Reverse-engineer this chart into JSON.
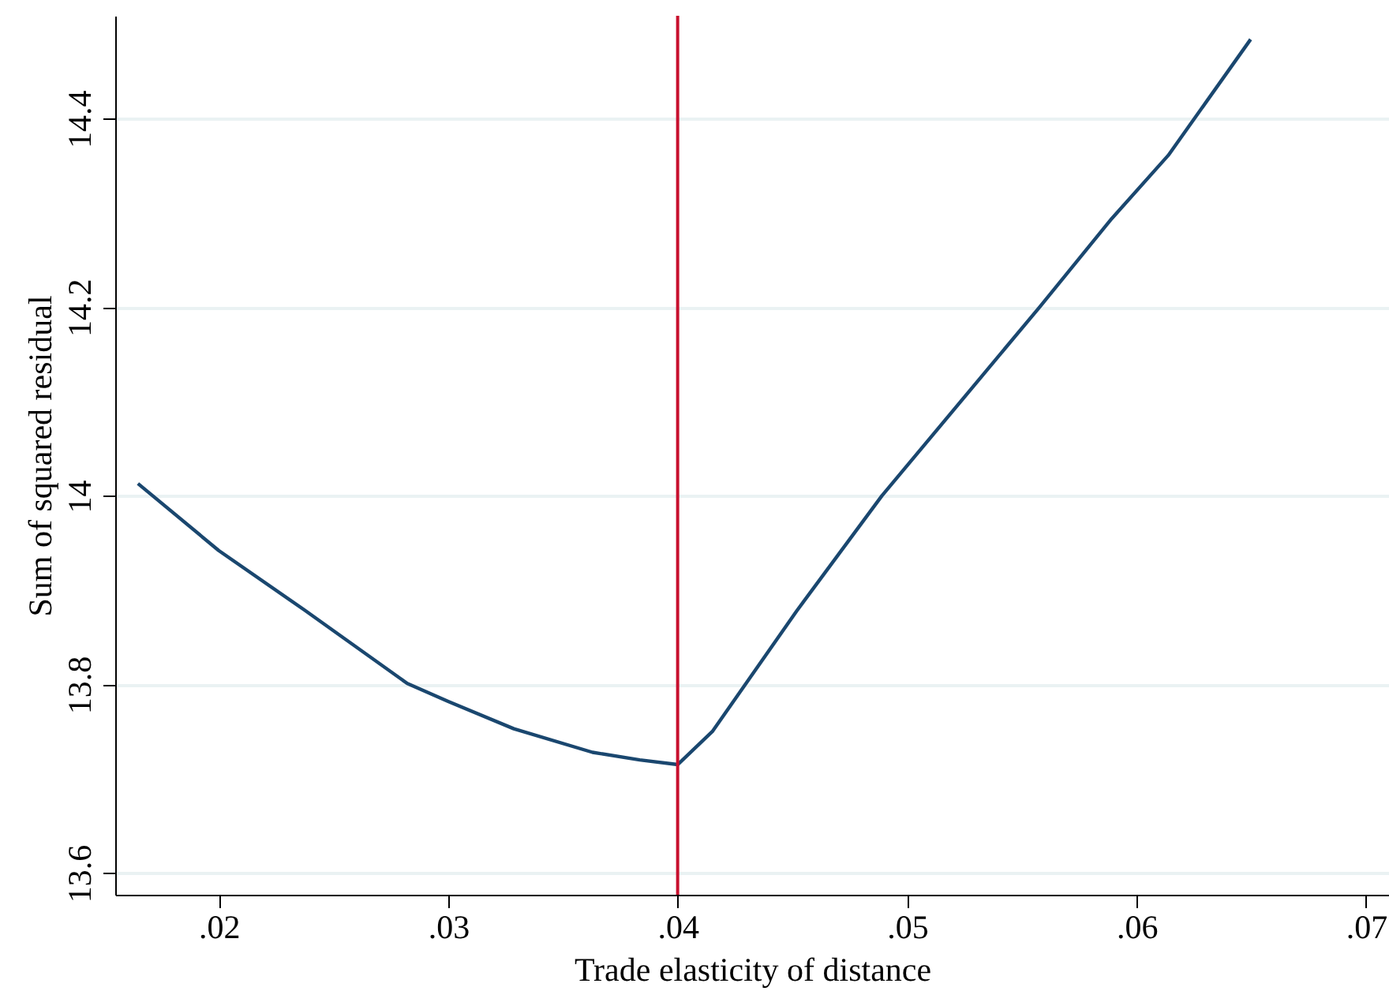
{
  "chart_data": {
    "type": "line",
    "xlabel": "Trade elasticity of distance",
    "ylabel": "Sum of squared residual",
    "xlim": [
      0.01549,
      0.071
    ],
    "ylim": [
      13.577,
      14.509
    ],
    "xticks": [
      {
        "value": 0.02,
        "label": ".02"
      },
      {
        "value": 0.03,
        "label": ".03"
      },
      {
        "value": 0.04,
        "label": ".04"
      },
      {
        "value": 0.05,
        "label": ".05"
      },
      {
        "value": 0.06,
        "label": ".06"
      },
      {
        "value": 0.07,
        "label": ".07"
      }
    ],
    "yticks": [
      13.6,
      13.8,
      {
        "value": 14,
        "label": "14"
      },
      14.2,
      14.4
    ],
    "grid": "y",
    "marker": "none",
    "line_style": "solid",
    "series": [
      {
        "color": "#1a476f",
        "x": [
          0.01648,
          0.02,
          0.02373,
          0.02822,
          0.03,
          0.03286,
          0.03629,
          0.03835,
          0.04,
          0.04151,
          0.04519,
          0.0489,
          0.05577,
          0.05892,
          0.06138,
          0.06497
        ],
        "values": [
          14.013,
          13.942,
          13.879,
          13.801,
          13.782,
          13.753,
          13.728,
          13.72,
          13.715,
          13.75,
          13.878,
          14.0,
          14.2,
          14.294,
          14.361,
          14.484
        ]
      }
    ],
    "ref_lines": [
      {
        "axis": "x",
        "value": 0.04,
        "color": "#c8102e",
        "line_style": "solid"
      }
    ]
  }
}
